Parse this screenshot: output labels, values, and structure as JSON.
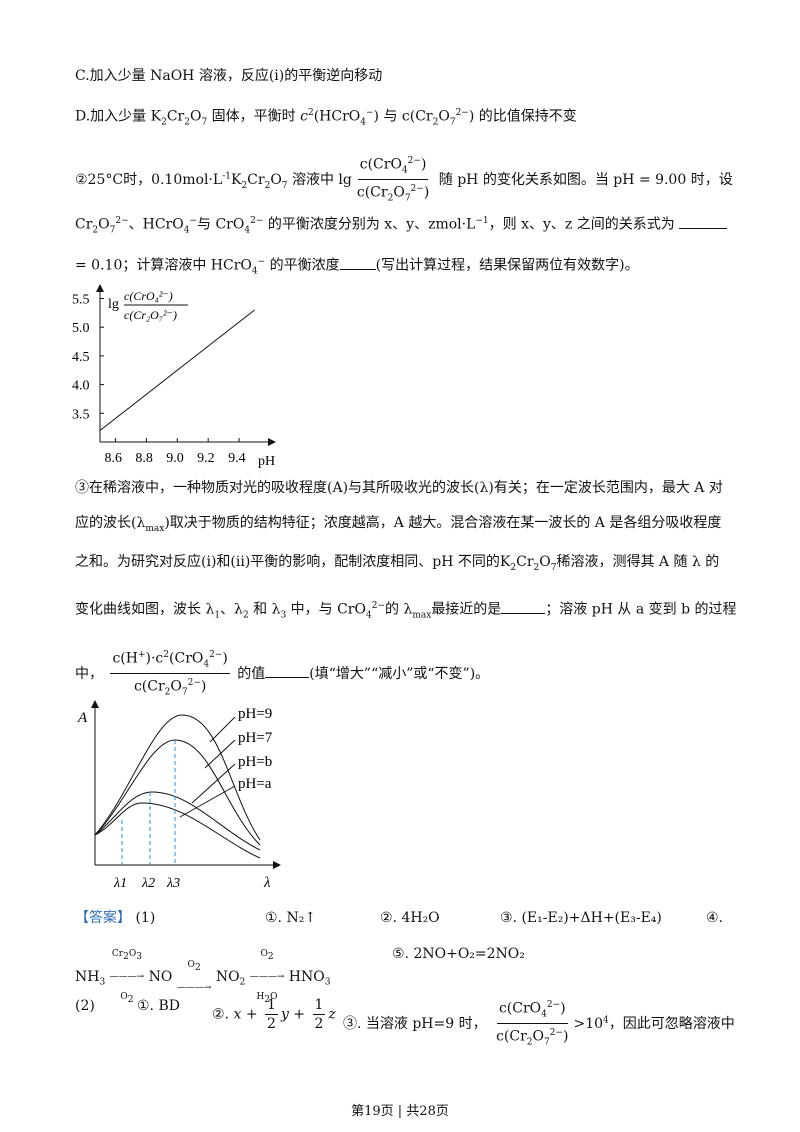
{
  "lines": {
    "c_option": "C.加入少量 NaOH 溶液，反应(i)的平衡逆向移动",
    "d_option_prefix": "D.加入少量",
    "d_option_mid": "固体，平衡时",
    "d_option_and": "与",
    "d_option_suffix": "的比值保持不变",
    "q2_prefix": "②25°C时，0.10mol·L",
    "q2_mid": "溶液中",
    "q2_suffix": "随 pH 的变化关系如图。当 pH = 9.00 时，设",
    "q2_line2a": "的平衡浓度分别为 x、y、zmol·L",
    "q2_line2b": "，则 x、y、z 之间的关系式为",
    "q2_line3a": "= 0.10；计算溶液中",
    "q2_line3b": "的平衡浓度",
    "q2_line3c": "(写出计算过程，结果保留两位有效数字)。",
    "q3_line1": "③在稀溶液中，一种物质对光的吸收程度(A)与其所吸收光的波长(λ)有关；在一定波长范围内，最大 A 对",
    "q3_line2a": "应的波长(λ",
    "q3_line2b": ")取决于物质的结构特征；浓度越高，A 越大。混合溶液在某一波长的 A 是各组分吸收程度",
    "q3_line3a": "之和。为研究对反应(i)和(ii)平衡的影响，配制浓度相同、pH 不同的",
    "q3_line3b": "稀溶液，测得其 A 随 λ 的",
    "q3_line4a": "变化曲线如图，波长 λ",
    "q3_line4b": "的 λ",
    "q3_line4c": "最接近的是",
    "q3_line4d": "；溶液 pH 从 a 变到 b 的过程",
    "q3_line5a": "中，",
    "q3_line5b": "的值",
    "q3_line5c": "(填“增大”“减小”或“不变”)。"
  },
  "answer": {
    "tag": "【答案】",
    "part1": "(1)",
    "a1": "①. N₂↑",
    "a2": "②. 4H₂O",
    "a3": "③. (E₁-E₂)+ΔH+(E₃-E₄)",
    "a4": "④.",
    "a5": "⑤. 2NO+O₂=2NO₂",
    "part2": "(2)",
    "b1": "①. BD",
    "b2": "②.",
    "b3": "③. 当溶液 pH=9 时，",
    "b3_end": "，因此可忽略溶液中"
  },
  "footer": "第19页 | 共28页",
  "chart_data": [
    {
      "type": "line",
      "title": "",
      "xlabel": "pH",
      "ylabel": "lg c(CrO₄²⁻)/c(Cr₂O₇²⁻)",
      "x_ticks": [
        "8.6",
        "8.8",
        "9.0",
        "9.2",
        "9.4"
      ],
      "y_ticks": [
        "3.5",
        "4.0",
        "4.5",
        "5.0",
        "5.5"
      ],
      "series": [
        {
          "x": [
            8.5,
            9.5
          ],
          "y": [
            3.2,
            5.3
          ]
        }
      ],
      "grid": false
    },
    {
      "type": "line",
      "title": "",
      "xlabel": "λ",
      "ylabel": "A",
      "x_ticks": [
        "λ1",
        "λ2",
        "λ3"
      ],
      "series": [
        {
          "name": "pH=9"
        },
        {
          "name": "pH=7"
        },
        {
          "name": "pH=b"
        },
        {
          "name": "pH=a"
        }
      ]
    }
  ]
}
